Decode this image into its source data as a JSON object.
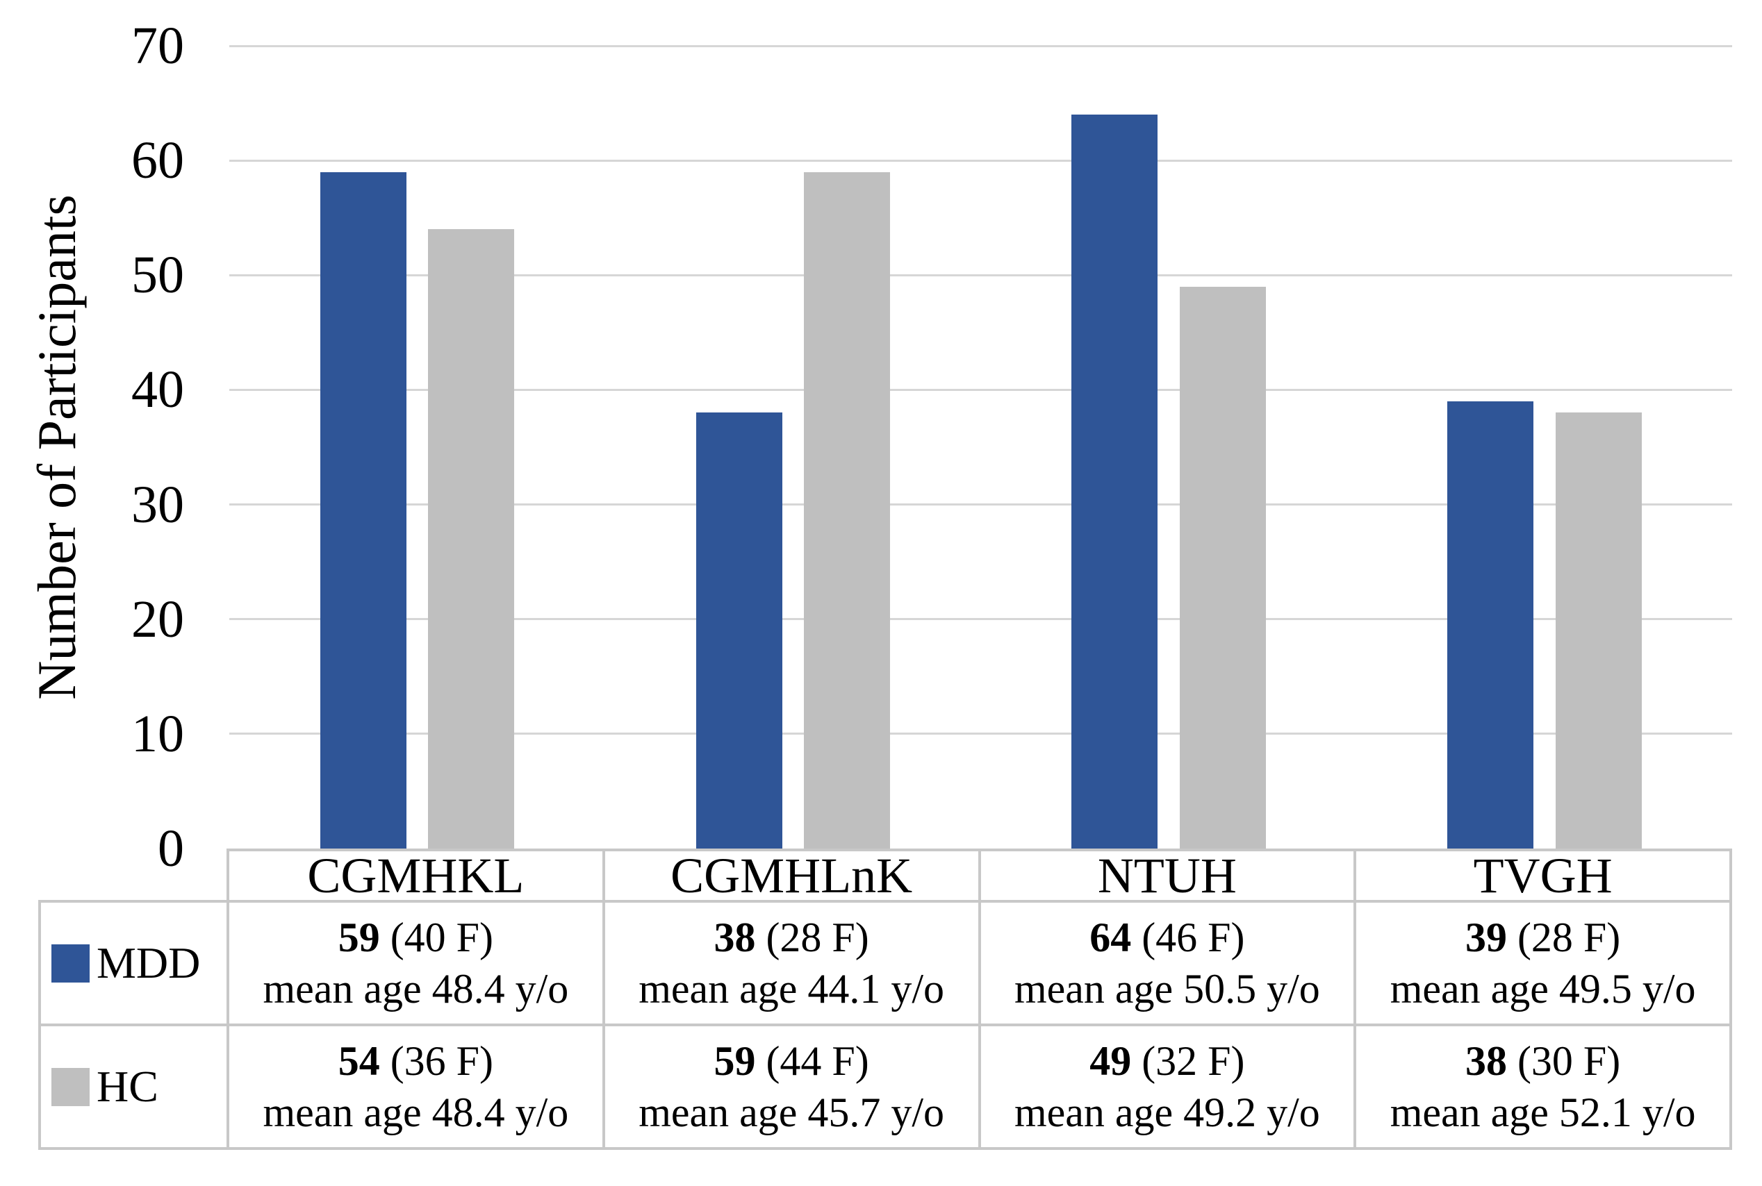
{
  "chart_data": {
    "type": "bar",
    "title": "",
    "ylabel": "Number of Participants",
    "xlabel": "",
    "ylim": [
      0,
      70
    ],
    "yticks": [
      0,
      10,
      20,
      30,
      40,
      50,
      60,
      70
    ],
    "grid": true,
    "legend_position": "table left column",
    "categories": [
      "CGMHKL",
      "CGMHLnK",
      "NTUH",
      "TVGH"
    ],
    "series": [
      {
        "name": "MDD",
        "color": "#2F5597",
        "values": [
          59,
          38,
          64,
          39
        ],
        "table_cells": [
          {
            "count": "59",
            "females": "(40 F)",
            "mean_age": "mean age 48.4 y/o"
          },
          {
            "count": "38",
            "females": "(28 F)",
            "mean_age": "mean age 44.1 y/o"
          },
          {
            "count": "64",
            "females": "(46 F)",
            "mean_age": "mean age 50.5 y/o"
          },
          {
            "count": "39",
            "females": "(28 F)",
            "mean_age": "mean age 49.5 y/o"
          }
        ]
      },
      {
        "name": "HC",
        "color": "#BFBFBF",
        "values": [
          54,
          59,
          49,
          38
        ],
        "table_cells": [
          {
            "count": "54",
            "females": "(36 F)",
            "mean_age": "mean age 48.4 y/o"
          },
          {
            "count": "59",
            "females": "(44 F)",
            "mean_age": "mean age 45.7 y/o"
          },
          {
            "count": "49",
            "females": "(32 F)",
            "mean_age": "mean age 49.2 y/o"
          },
          {
            "count": "38",
            "females": "(30 F)",
            "mean_age": "mean age 52.1 y/o"
          }
        ]
      }
    ],
    "colors": {
      "gridline": "#D6D6D6",
      "table_border": "#C8C8C8",
      "text": "#000000",
      "background": "#FFFFFF"
    }
  }
}
